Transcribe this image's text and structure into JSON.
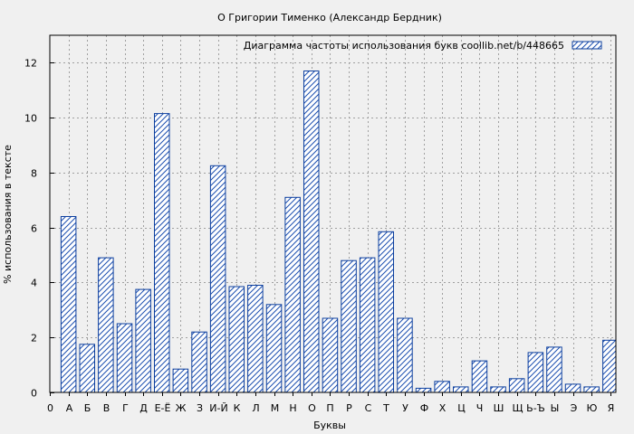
{
  "chart_data": {
    "type": "bar",
    "title": "О Григории Тименко (Александр Бердник)",
    "legend_label": "Диаграмма частоты использования букв  coollib.net/b/448665",
    "legend_position": "top-right",
    "xlabel": "Буквы",
    "ylabel": "% использования в тексте",
    "ylim": [
      0,
      13
    ],
    "yticks": [
      0,
      2,
      4,
      6,
      8,
      10,
      12
    ],
    "grid": true,
    "x_first_tick_label": "0",
    "categories": [
      "А",
      "Б",
      "В",
      "Г",
      "Д",
      "Е-Ё",
      "Ж",
      "З",
      "И-Й",
      "К",
      "Л",
      "М",
      "Н",
      "О",
      "П",
      "Р",
      "С",
      "Т",
      "У",
      "Ф",
      "Х",
      "Ц",
      "Ч",
      "Ш",
      "Щ",
      "Ь-Ъ",
      "Ы",
      "Э",
      "Ю",
      "Я"
    ],
    "values": [
      6.4,
      1.75,
      4.9,
      2.5,
      3.75,
      10.15,
      0.85,
      2.2,
      8.25,
      3.85,
      3.9,
      3.2,
      7.1,
      11.7,
      2.7,
      4.8,
      4.9,
      5.85,
      2.7,
      0.15,
      0.4,
      0.2,
      1.15,
      0.2,
      0.5,
      1.45,
      1.65,
      0.3,
      0.2,
      1.9
    ],
    "colors": {
      "bar_stroke": "#0d3f9e",
      "hatch": "#1c4fb0",
      "bar_fill": "#ffffff",
      "background": "#f0f0f0",
      "grid": "#a0a0a0"
    }
  }
}
